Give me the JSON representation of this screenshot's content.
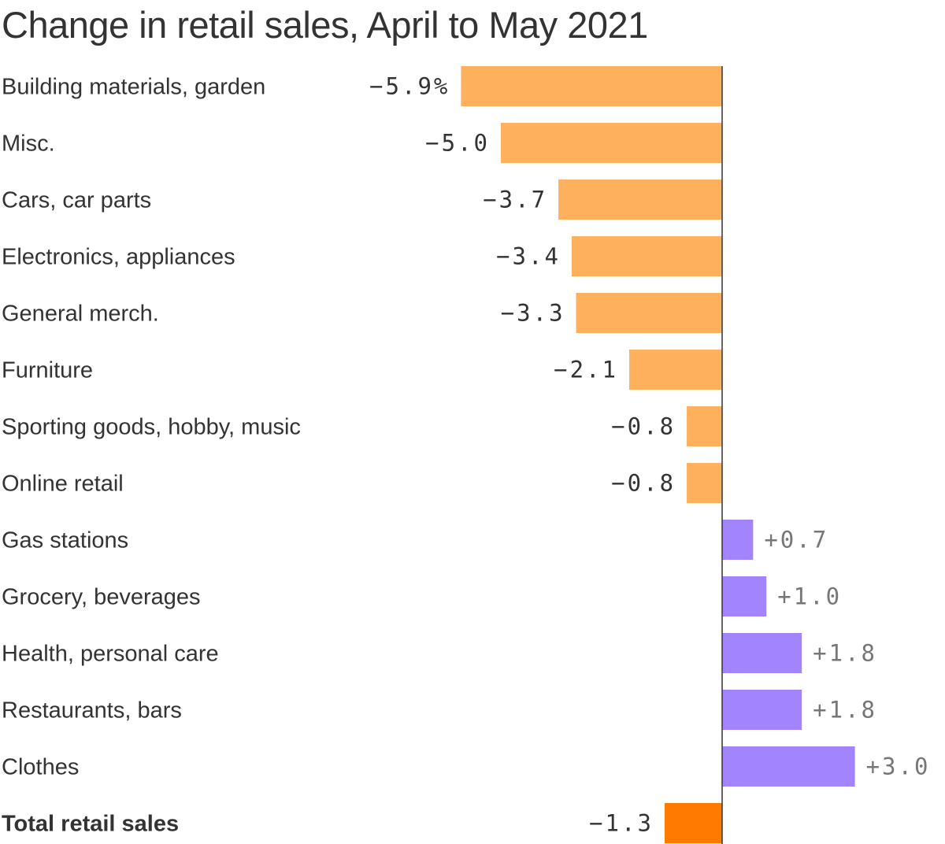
{
  "chart_data": {
    "type": "bar",
    "orientation": "horizontal",
    "title": "Change in retail sales, April to May 2021",
    "xlabel": "",
    "ylabel": "",
    "unit": "%",
    "grid": false,
    "xlim": [
      -5.9,
      3.0
    ],
    "categories": [
      "Building materials, garden",
      "Misc.",
      "Cars, car parts",
      "Electronics, appliances",
      "General merch.",
      "Furniture",
      "Sporting goods, hobby, music",
      "Online retail",
      "Gas stations",
      "Grocery, beverages",
      "Health, personal care",
      "Restaurants, bars",
      "Clothes",
      "Total retail sales"
    ],
    "values": [
      -5.9,
      -5.0,
      -3.7,
      -3.4,
      -3.3,
      -2.1,
      -0.8,
      -0.8,
      0.7,
      1.0,
      1.8,
      1.8,
      3.0,
      -1.3
    ],
    "value_labels": [
      "−5.9%",
      "−5.0",
      "−3.7",
      "−3.4",
      "−3.3",
      "−2.1",
      "−0.8",
      "−0.8",
      "+0.7",
      "+1.0",
      "+1.8",
      "+1.8",
      "+3.0",
      "−1.3"
    ],
    "bold_categories": [
      "Total retail sales"
    ],
    "colors": {
      "negative": "#ffb05c",
      "positive": "#a384ff",
      "total": "#ff7b00",
      "axis": "#333333",
      "negative_label": "#333333",
      "positive_label": "#777777"
    }
  }
}
